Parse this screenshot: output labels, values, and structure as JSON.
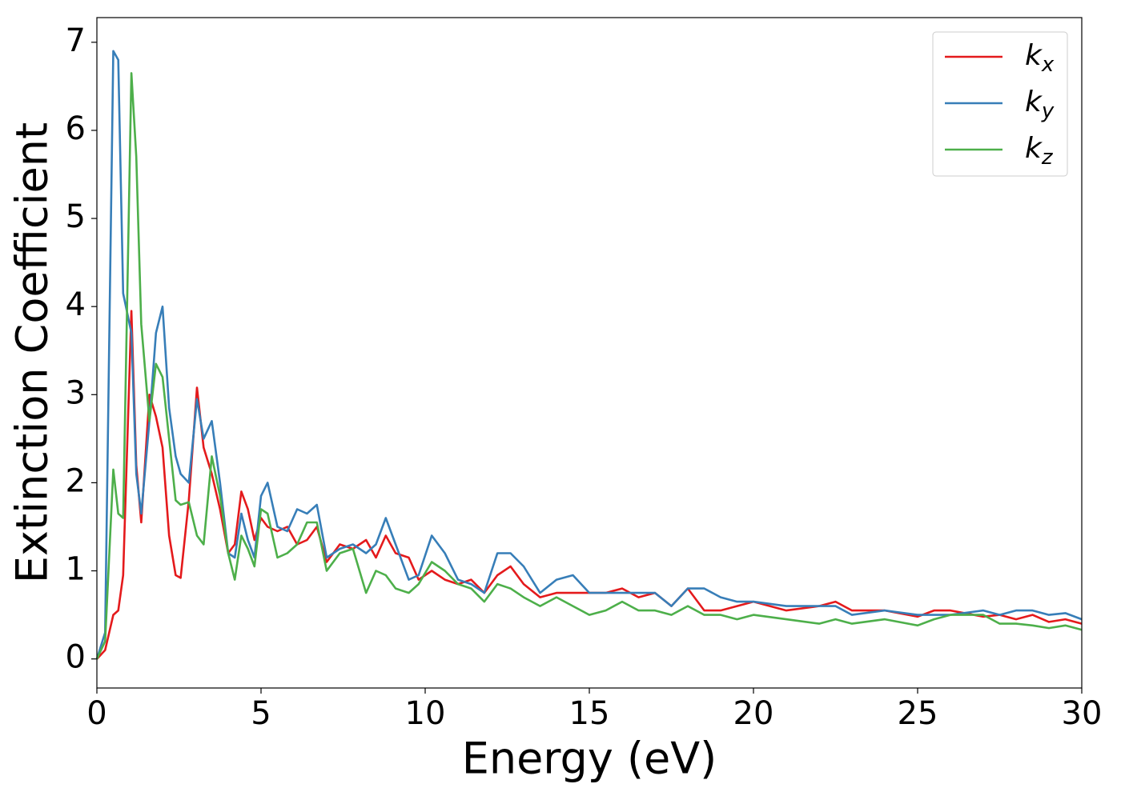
{
  "chart_data": {
    "type": "line",
    "xlabel": "Energy (eV)",
    "ylabel": "Extinction Coefficient",
    "x": [
      0,
      0.25,
      0.5,
      0.65,
      0.8,
      1.05,
      1.2,
      1.35,
      1.6,
      1.8,
      2.0,
      2.2,
      2.4,
      2.55,
      2.8,
      3.05,
      3.25,
      3.5,
      3.75,
      4.0,
      4.2,
      4.4,
      4.6,
      4.8,
      5.0,
      5.2,
      5.5,
      5.8,
      6.1,
      6.4,
      6.7,
      7.0,
      7.4,
      7.8,
      8.2,
      8.5,
      8.8,
      9.1,
      9.5,
      9.8,
      10.2,
      10.6,
      11.0,
      11.4,
      11.8,
      12.2,
      12.6,
      13.0,
      13.5,
      14.0,
      14.5,
      15.0,
      15.5,
      16.0,
      16.5,
      17.0,
      17.5,
      18.0,
      18.5,
      19.0,
      19.5,
      20.0,
      21,
      22,
      22.5,
      23,
      24,
      25,
      25.5,
      26,
      27,
      27.5,
      28,
      28.5,
      29,
      29.5,
      30
    ],
    "series": [
      {
        "name": "kx",
        "color": "#e41a1c",
        "values": [
          0,
          0.1,
          0.5,
          0.55,
          0.95,
          3.95,
          2.2,
          1.55,
          3.0,
          2.75,
          2.4,
          1.4,
          0.95,
          0.92,
          1.8,
          3.08,
          2.4,
          2.1,
          1.7,
          1.2,
          1.3,
          1.9,
          1.7,
          1.35,
          1.6,
          1.5,
          1.45,
          1.5,
          1.3,
          1.35,
          1.5,
          1.1,
          1.3,
          1.25,
          1.35,
          1.15,
          1.4,
          1.2,
          1.15,
          0.9,
          1.0,
          0.9,
          0.85,
          0.9,
          0.75,
          0.95,
          1.05,
          0.85,
          0.7,
          0.75,
          0.75,
          0.75,
          0.75,
          0.8,
          0.7,
          0.75,
          0.6,
          0.8,
          0.55,
          0.55,
          0.6,
          0.65,
          0.55,
          0.6,
          0.65,
          0.55,
          0.55,
          0.48,
          0.55,
          0.55,
          0.48,
          0.5,
          0.45,
          0.5,
          0.42,
          0.45,
          0.4
        ]
      },
      {
        "name": "ky",
        "color": "#377eb8",
        "values": [
          0,
          0.3,
          6.9,
          6.8,
          4.15,
          3.7,
          2.1,
          1.65,
          2.7,
          3.7,
          4.0,
          2.85,
          2.3,
          2.1,
          2.0,
          2.95,
          2.5,
          2.7,
          2.0,
          1.2,
          1.15,
          1.65,
          1.35,
          1.15,
          1.85,
          2.0,
          1.5,
          1.45,
          1.7,
          1.65,
          1.75,
          1.15,
          1.25,
          1.3,
          1.2,
          1.3,
          1.6,
          1.3,
          0.9,
          0.95,
          1.4,
          1.2,
          0.9,
          0.85,
          0.75,
          1.2,
          1.2,
          1.05,
          0.75,
          0.9,
          0.95,
          0.75,
          0.75,
          0.75,
          0.75,
          0.75,
          0.6,
          0.8,
          0.8,
          0.7,
          0.65,
          0.65,
          0.6,
          0.6,
          0.6,
          0.5,
          0.55,
          0.5,
          0.5,
          0.5,
          0.55,
          0.5,
          0.55,
          0.55,
          0.5,
          0.52,
          0.45
        ]
      },
      {
        "name": "kz",
        "color": "#4daf4a",
        "values": [
          0,
          0.2,
          2.15,
          1.65,
          1.6,
          6.65,
          5.7,
          3.8,
          2.7,
          3.35,
          3.2,
          2.5,
          1.8,
          1.75,
          1.78,
          1.4,
          1.3,
          2.3,
          1.85,
          1.2,
          0.9,
          1.4,
          1.25,
          1.05,
          1.7,
          1.65,
          1.15,
          1.2,
          1.3,
          1.55,
          1.55,
          1.0,
          1.2,
          1.25,
          0.75,
          1.0,
          0.95,
          0.8,
          0.75,
          0.85,
          1.1,
          1.0,
          0.85,
          0.8,
          0.65,
          0.85,
          0.8,
          0.7,
          0.6,
          0.7,
          0.6,
          0.5,
          0.55,
          0.65,
          0.55,
          0.55,
          0.5,
          0.6,
          0.5,
          0.5,
          0.45,
          0.5,
          0.45,
          0.4,
          0.45,
          0.4,
          0.45,
          0.38,
          0.45,
          0.5,
          0.5,
          0.4,
          0.4,
          0.38,
          0.35,
          0.38,
          0.33
        ]
      }
    ],
    "xlim": [
      0,
      30
    ],
    "xticks": [
      0,
      5,
      10,
      15,
      20,
      25,
      30
    ],
    "ylim": [
      -0.33,
      7.28
    ],
    "yticks": [
      0,
      1,
      2,
      3,
      4,
      5,
      6,
      7
    ],
    "grid": false,
    "legend": "upper right"
  }
}
